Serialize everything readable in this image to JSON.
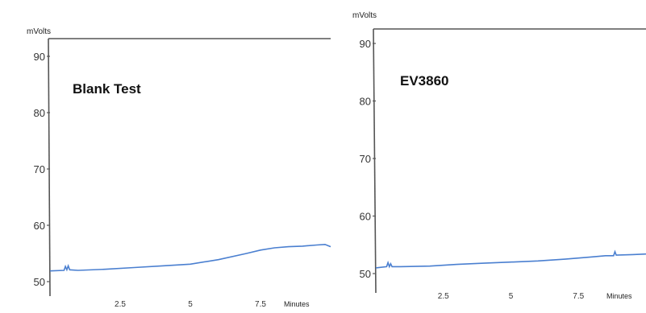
{
  "chart_data": [
    {
      "type": "line",
      "title": "Blank Test",
      "ylabel": "mVolts",
      "xlabel": "Minutes",
      "xlim": [
        0,
        10
      ],
      "ylim": [
        50,
        90
      ],
      "yticks": [
        "50",
        "60",
        "70",
        "80",
        "90"
      ],
      "xticks": [
        "2.5",
        "5",
        "7.5"
      ],
      "line_color": "#4a7fd0",
      "series": [
        {
          "x": [
            0,
            0.5,
            0.55,
            0.6,
            0.65,
            0.7,
            1,
            2,
            3,
            4,
            5,
            6,
            7,
            7.5,
            8,
            8.5,
            9,
            9.5,
            9.8,
            10
          ],
          "y": [
            51.9,
            52.0,
            52.7,
            52.1,
            52.8,
            52.1,
            52.0,
            52.2,
            52.5,
            52.8,
            53.1,
            53.9,
            55.0,
            55.6,
            56.0,
            56.2,
            56.3,
            56.5,
            56.6,
            56.2
          ]
        }
      ]
    },
    {
      "type": "line",
      "title": "EV3860",
      "ylabel": "mVolts",
      "xlabel": "Minutes",
      "xlim": [
        0,
        10
      ],
      "ylim": [
        50,
        90
      ],
      "yticks": [
        "50",
        "60",
        "70",
        "80",
        "90"
      ],
      "xticks": [
        "2.5",
        "5",
        "7.5"
      ],
      "line_color": "#4a7fd0",
      "series": [
        {
          "x": [
            0,
            0.4,
            0.45,
            0.5,
            0.55,
            0.6,
            0.9,
            2,
            3,
            4,
            5,
            6,
            7,
            7.5,
            8,
            8.5,
            8.8,
            8.85,
            8.9,
            9.5,
            10
          ],
          "y": [
            51.0,
            51.2,
            51.9,
            51.2,
            51.7,
            51.2,
            51.2,
            51.3,
            51.6,
            51.8,
            52.0,
            52.2,
            52.5,
            52.7,
            52.9,
            53.1,
            53.1,
            53.8,
            53.2,
            53.3,
            53.4
          ]
        }
      ]
    }
  ]
}
